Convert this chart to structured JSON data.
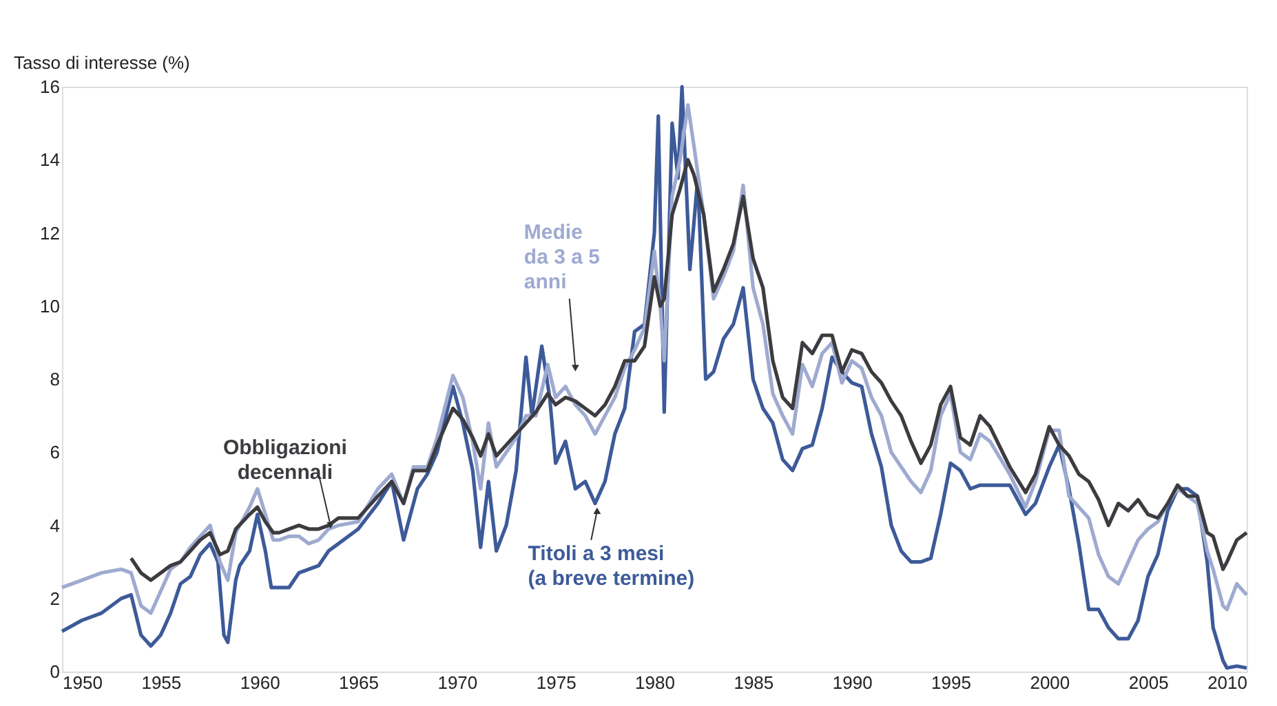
{
  "chart_data": {
    "type": "line",
    "ylabel": "Tasso di interesse (%)",
    "xlim": [
      1950,
      2010
    ],
    "xticks": [
      1950,
      1955,
      1960,
      1965,
      1970,
      1975,
      1980,
      1985,
      1990,
      1995,
      2000,
      2005,
      2010
    ],
    "ylim": [
      0,
      16
    ],
    "yticks": [
      0,
      2,
      4,
      6,
      8,
      10,
      12,
      14,
      16
    ],
    "grid": false,
    "marker": "none",
    "line_style": "solid",
    "series": [
      {
        "color": "#3d5a99",
        "x": [
          1950,
          1951,
          1952,
          1953,
          1953.5,
          1954,
          1954.5,
          1955,
          1955.5,
          1956,
          1956.5,
          1957,
          1957.5,
          1957.9,
          1958.2,
          1958.4,
          1958.8,
          1959,
          1959.5,
          1959.9,
          1960.3,
          1960.6,
          1961,
          1961.5,
          1962,
          1962.5,
          1963,
          1963.5,
          1964,
          1965,
          1966,
          1966.7,
          1967.3,
          1967.8,
          1968,
          1968.5,
          1969,
          1969.8,
          1970.3,
          1970.8,
          1971.2,
          1971.6,
          1972,
          1972.5,
          1973,
          1973.5,
          1973.8,
          1974.3,
          1974.7,
          1975,
          1975.5,
          1976,
          1976.5,
          1977,
          1977.5,
          1978,
          1978.5,
          1979,
          1979.5,
          1980,
          1980.2,
          1980.5,
          1980.9,
          1981.2,
          1981.4,
          1981.8,
          1982.2,
          1982.6,
          1983,
          1983.5,
          1984,
          1984.5,
          1985,
          1985.5,
          1986,
          1986.5,
          1987,
          1987.5,
          1988,
          1988.5,
          1989,
          1989.5,
          1990,
          1990.5,
          1991,
          1991.5,
          1992,
          1992.5,
          1993,
          1993.5,
          1994,
          1994.5,
          1995,
          1995.5,
          1996,
          1996.5,
          1997,
          1998,
          1998.8,
          1999.3,
          2000,
          2000.5,
          2001,
          2001.5,
          2002,
          2002.5,
          2003,
          2003.5,
          2004,
          2004.5,
          2005,
          2005.5,
          2006,
          2006.5,
          2007,
          2007.5,
          2008,
          2008.3,
          2008.8,
          2009,
          2009.5,
          2010
        ],
        "values": [
          1.1,
          1.4,
          1.6,
          2.0,
          2.1,
          1.0,
          0.7,
          1.0,
          1.6,
          2.4,
          2.6,
          3.2,
          3.5,
          3.0,
          1.0,
          0.8,
          2.5,
          2.9,
          3.3,
          4.3,
          3.3,
          2.3,
          2.3,
          2.3,
          2.7,
          2.8,
          2.9,
          3.3,
          3.5,
          3.9,
          4.6,
          5.2,
          3.6,
          4.6,
          5.0,
          5.4,
          6.0,
          7.8,
          6.8,
          5.5,
          3.4,
          5.2,
          3.3,
          4.0,
          5.5,
          8.6,
          7.0,
          8.9,
          7.5,
          5.7,
          6.3,
          5.0,
          5.2,
          4.6,
          5.2,
          6.5,
          7.2,
          9.3,
          9.5,
          12.0,
          15.2,
          7.1,
          15.0,
          13.5,
          16.0,
          11.0,
          13.5,
          8.0,
          8.2,
          9.1,
          9.5,
          10.5,
          8.0,
          7.2,
          6.8,
          5.8,
          5.5,
          6.1,
          6.2,
          7.2,
          8.6,
          8.2,
          7.9,
          7.8,
          6.5,
          5.6,
          4.0,
          3.3,
          3.0,
          3.0,
          3.1,
          4.3,
          5.7,
          5.5,
          5.0,
          5.1,
          5.1,
          5.1,
          4.3,
          4.6,
          5.6,
          6.2,
          5.0,
          3.5,
          1.7,
          1.7,
          1.2,
          0.9,
          0.9,
          1.4,
          2.6,
          3.2,
          4.4,
          5.0,
          5.0,
          4.8,
          3.0,
          1.2,
          0.3,
          0.1,
          0.15,
          0.1
        ]
      },
      {
        "color": "#9eaad0",
        "x": [
          1950,
          1951,
          1952,
          1953,
          1953.5,
          1954,
          1954.5,
          1955,
          1955.5,
          1956,
          1956.5,
          1957,
          1957.5,
          1958,
          1958.4,
          1958.8,
          1959.5,
          1959.9,
          1960.3,
          1960.7,
          1961,
          1961.5,
          1962,
          1962.5,
          1963,
          1963.5,
          1964,
          1965,
          1966,
          1966.7,
          1967.3,
          1967.8,
          1968.5,
          1969,
          1969.8,
          1970.3,
          1970.8,
          1971.2,
          1971.6,
          1972,
          1972.5,
          1973,
          1973.5,
          1974,
          1974.6,
          1975,
          1975.5,
          1976,
          1976.5,
          1977,
          1977.5,
          1978,
          1978.5,
          1979,
          1979.5,
          1980,
          1980.3,
          1980.5,
          1980.9,
          1981.3,
          1981.7,
          1982,
          1982.5,
          1983,
          1983.5,
          1984,
          1984.5,
          1985,
          1985.5,
          1986,
          1986.5,
          1987,
          1987.5,
          1988,
          1988.5,
          1989,
          1989.5,
          1990,
          1990.5,
          1991,
          1991.5,
          1992,
          1992.5,
          1993,
          1993.5,
          1994,
          1994.5,
          1995,
          1995.5,
          1996,
          1996.5,
          1997,
          1998,
          1998.8,
          1999.3,
          2000,
          2000.5,
          2001,
          2001.5,
          2002,
          2002.5,
          2003,
          2003.5,
          2004,
          2004.5,
          2005,
          2005.5,
          2006,
          2006.5,
          2007,
          2007.5,
          2008,
          2008.3,
          2008.8,
          2009,
          2009.5,
          2010
        ],
        "values": [
          2.3,
          2.5,
          2.7,
          2.8,
          2.7,
          1.8,
          1.6,
          2.2,
          2.8,
          3.0,
          3.4,
          3.7,
          4.0,
          3.0,
          2.5,
          3.8,
          4.5,
          5.0,
          4.3,
          3.6,
          3.6,
          3.7,
          3.7,
          3.5,
          3.6,
          3.9,
          4.0,
          4.1,
          5.0,
          5.4,
          4.6,
          5.6,
          5.6,
          6.4,
          8.1,
          7.5,
          6.3,
          5.0,
          6.8,
          5.6,
          6.0,
          6.4,
          7.0,
          7.0,
          8.4,
          7.5,
          7.8,
          7.3,
          7.0,
          6.5,
          7.0,
          7.5,
          8.3,
          8.8,
          9.4,
          11.5,
          10.0,
          8.5,
          13.0,
          14.0,
          15.5,
          14.4,
          12.5,
          10.2,
          10.8,
          11.5,
          13.3,
          10.5,
          9.5,
          7.6,
          7.0,
          6.5,
          8.4,
          7.8,
          8.7,
          9.0,
          7.9,
          8.5,
          8.3,
          7.5,
          7.0,
          6.0,
          5.6,
          5.2,
          4.9,
          5.5,
          7.0,
          7.6,
          6.0,
          5.8,
          6.5,
          6.3,
          5.4,
          4.5,
          5.2,
          6.6,
          6.6,
          4.8,
          4.5,
          4.2,
          3.2,
          2.6,
          2.4,
          3.0,
          3.6,
          3.9,
          4.1,
          4.6,
          5.0,
          4.8,
          4.6,
          3.3,
          2.8,
          1.8,
          1.7,
          2.4,
          2.1
        ]
      },
      {
        "color": "#3c3c40",
        "x": [
          1953.5,
          1954,
          1954.5,
          1955,
          1955.5,
          1956,
          1956.5,
          1957,
          1957.5,
          1958,
          1958.4,
          1958.8,
          1959.5,
          1959.9,
          1960.3,
          1960.7,
          1961,
          1961.5,
          1962,
          1962.5,
          1963,
          1963.5,
          1964,
          1965,
          1966,
          1966.7,
          1967.3,
          1967.8,
          1968.5,
          1969,
          1969.8,
          1970.3,
          1970.8,
          1971.2,
          1971.6,
          1972,
          1972.5,
          1973,
          1973.5,
          1974,
          1974.6,
          1975,
          1975.5,
          1976,
          1976.5,
          1977,
          1977.5,
          1978,
          1978.5,
          1979,
          1979.5,
          1980,
          1980.3,
          1980.5,
          1980.9,
          1981.3,
          1981.7,
          1982,
          1982.5,
          1983,
          1983.5,
          1984,
          1984.5,
          1985,
          1985.5,
          1986,
          1986.5,
          1987,
          1987.5,
          1988,
          1988.5,
          1989,
          1989.5,
          1990,
          1990.5,
          1991,
          1991.5,
          1992,
          1992.5,
          1993,
          1993.5,
          1994,
          1994.5,
          1995,
          1995.5,
          1996,
          1996.5,
          1997,
          1998,
          1998.8,
          1999.3,
          2000,
          2000.5,
          2001,
          2001.5,
          2002,
          2002.5,
          2003,
          2003.5,
          2004,
          2004.5,
          2005,
          2005.5,
          2006,
          2006.5,
          2007,
          2007.5,
          2008,
          2008.3,
          2008.8,
          2009,
          2009.5,
          2010
        ],
        "values": [
          3.1,
          2.7,
          2.5,
          2.7,
          2.9,
          3.0,
          3.3,
          3.6,
          3.8,
          3.2,
          3.3,
          3.9,
          4.3,
          4.5,
          4.1,
          3.8,
          3.8,
          3.9,
          4.0,
          3.9,
          3.9,
          4.0,
          4.2,
          4.2,
          4.8,
          5.2,
          4.6,
          5.5,
          5.5,
          6.2,
          7.2,
          6.9,
          6.4,
          5.9,
          6.5,
          5.9,
          6.2,
          6.5,
          6.8,
          7.1,
          7.6,
          7.3,
          7.5,
          7.4,
          7.2,
          7.0,
          7.3,
          7.8,
          8.5,
          8.5,
          8.9,
          10.8,
          10.0,
          10.2,
          12.5,
          13.2,
          14.0,
          13.6,
          12.5,
          10.4,
          11.0,
          11.7,
          13.0,
          11.3,
          10.5,
          8.5,
          7.5,
          7.2,
          9.0,
          8.7,
          9.2,
          9.2,
          8.2,
          8.8,
          8.7,
          8.2,
          7.9,
          7.4,
          7.0,
          6.3,
          5.7,
          6.2,
          7.3,
          7.8,
          6.4,
          6.2,
          7.0,
          6.7,
          5.6,
          4.9,
          5.4,
          6.7,
          6.2,
          5.9,
          5.4,
          5.2,
          4.7,
          4.0,
          4.6,
          4.4,
          4.7,
          4.3,
          4.2,
          4.6,
          5.1,
          4.8,
          4.8,
          3.8,
          3.7,
          2.8,
          3.0,
          3.6,
          3.8
        ]
      }
    ],
    "annotations": [
      {
        "text": "Obbligazioni\ndecennali",
        "x": 1963.6,
        "y": 4.0
      },
      {
        "text": "Medie\nda 3 a 5\nanni",
        "x": 1976.0,
        "y": 8.3
      },
      {
        "text": "Titoli a 3 mesi\n(a breve termine)",
        "x": 1977.1,
        "y": 4.4
      }
    ]
  }
}
